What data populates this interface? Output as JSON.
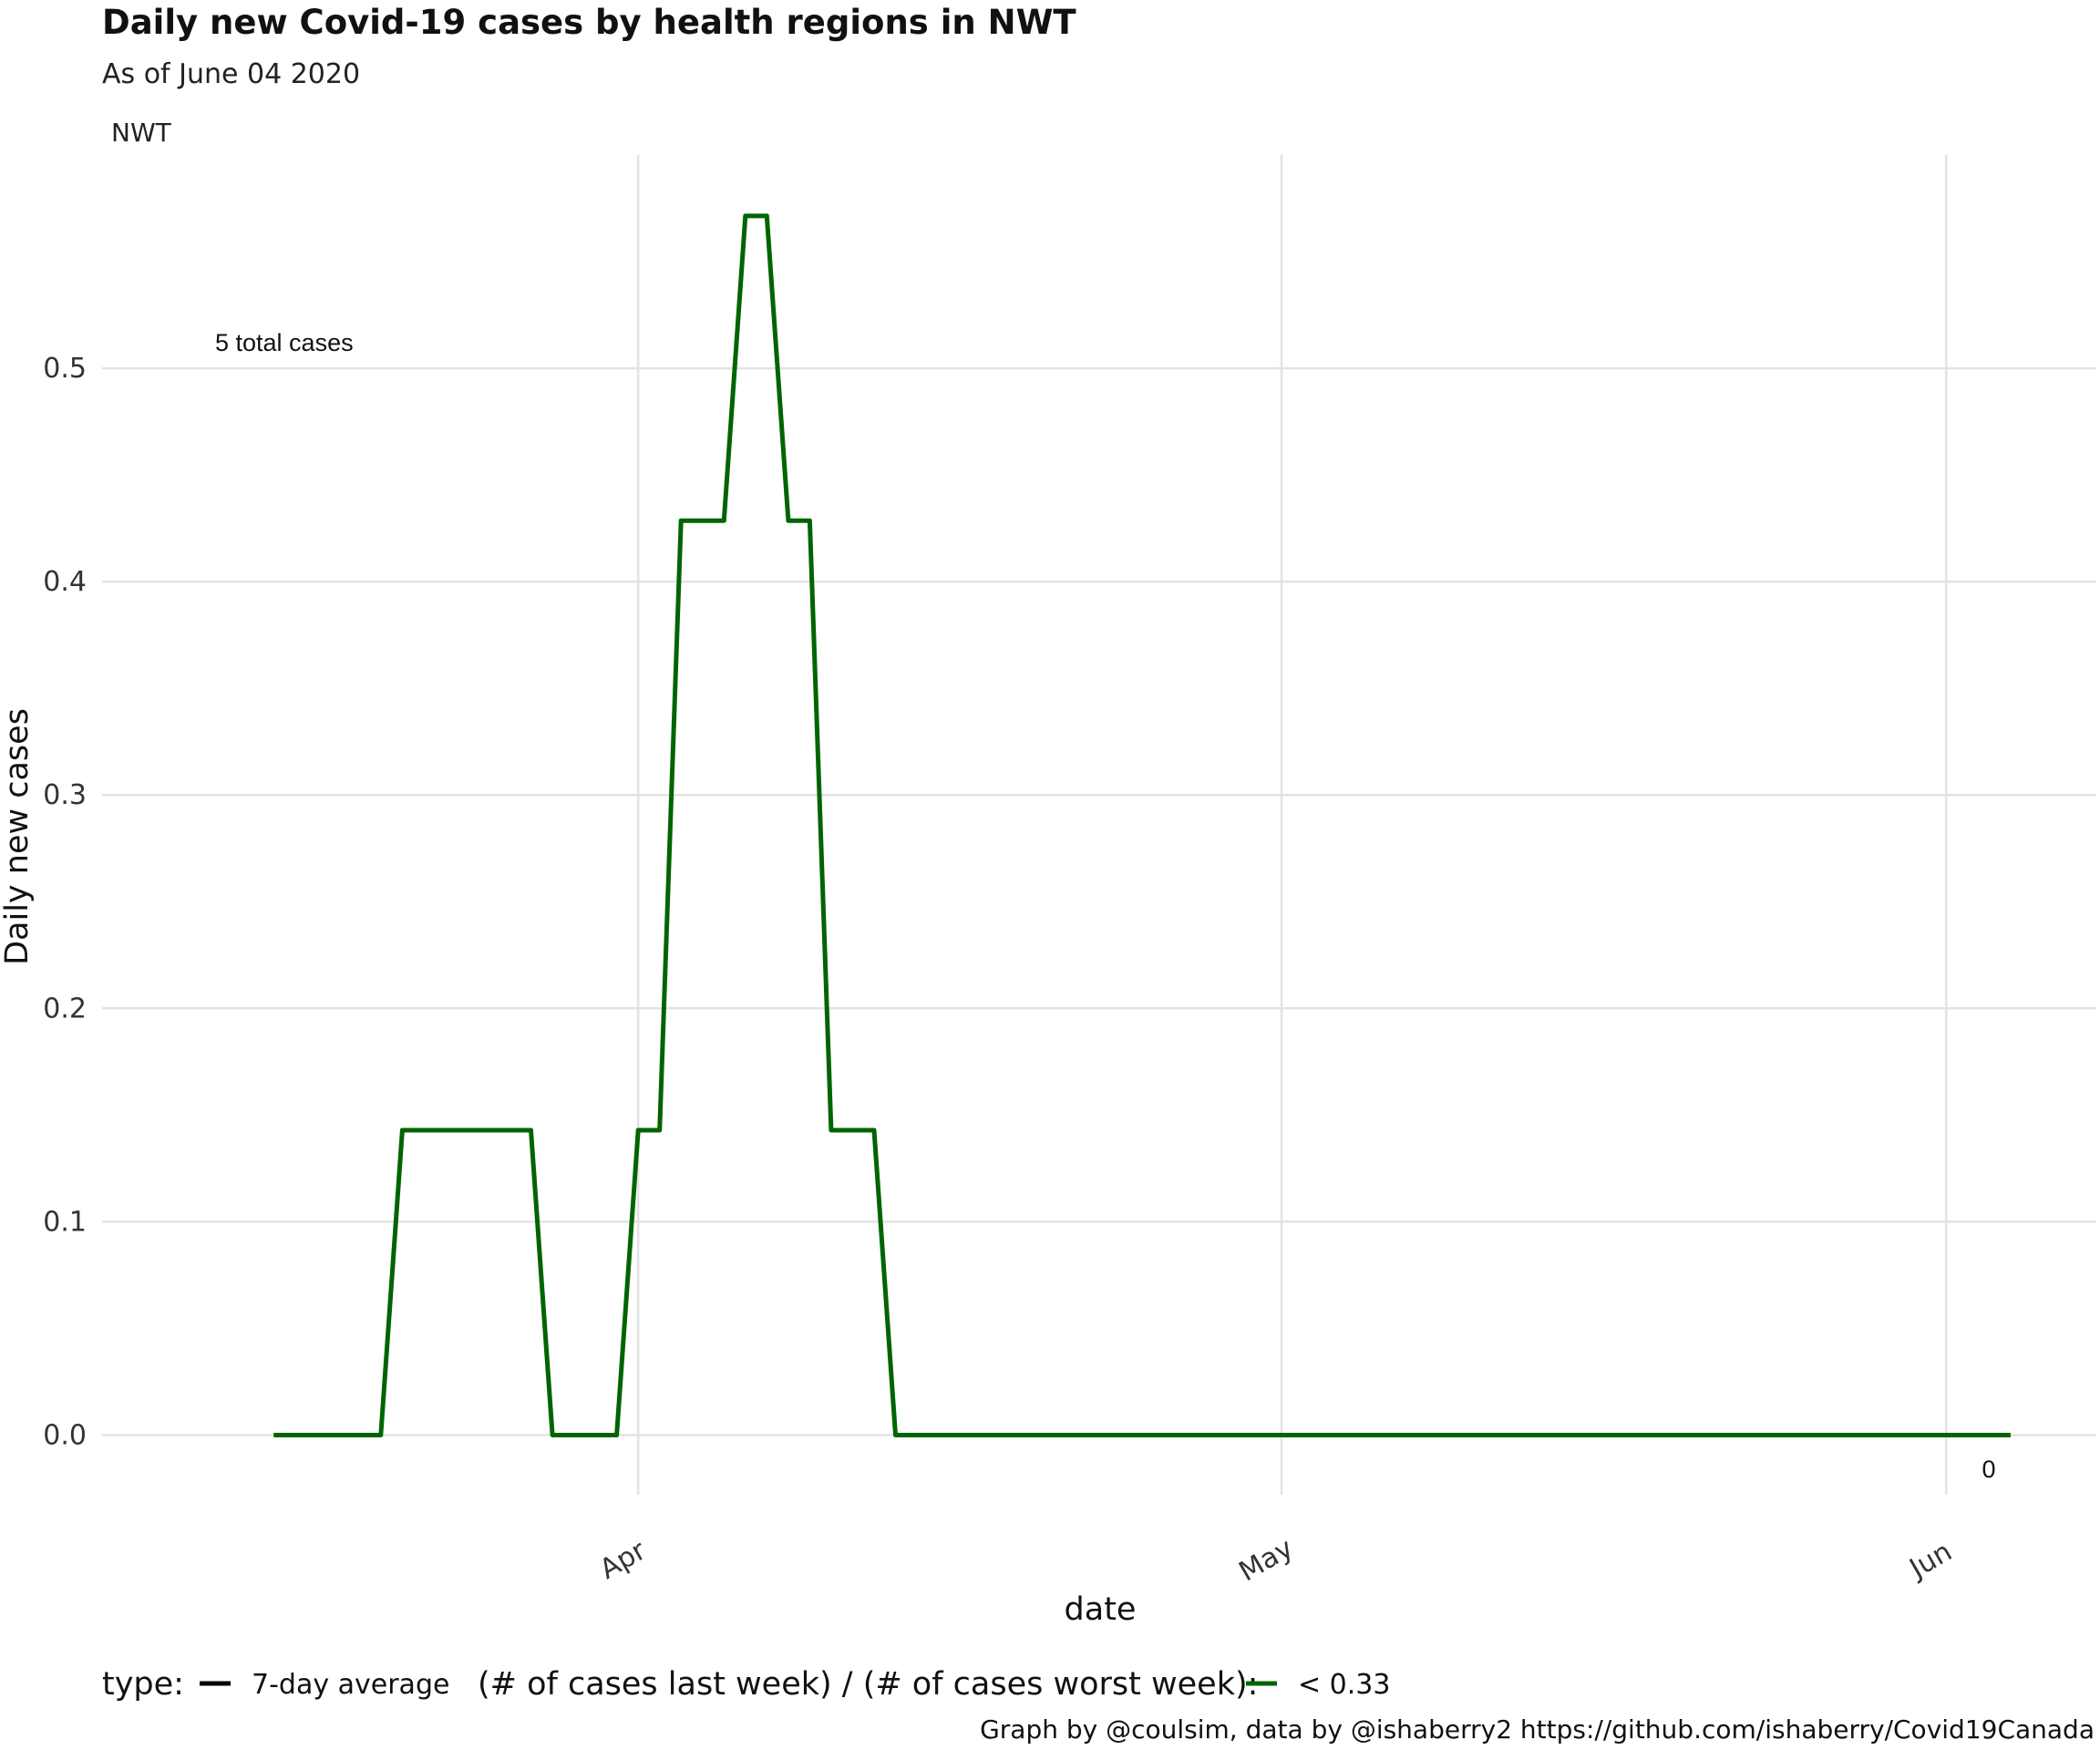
{
  "chart_data": {
    "type": "line",
    "title": "Daily new Covid-19 cases by health regions in NWT",
    "subtitle": "As of June 04 2020",
    "facet_label": "NWT",
    "xlabel": "date",
    "ylabel": "Daily new cases",
    "x_ticks": [
      {
        "label": "Apr",
        "date": "2020-04-01"
      },
      {
        "label": "May",
        "date": "2020-05-01"
      },
      {
        "label": "Jun",
        "date": "2020-06-01"
      }
    ],
    "xlim": [
      "2020-03-07",
      "2020-06-08"
    ],
    "y_ticks": [
      "0.0",
      "0.1",
      "0.2",
      "0.3",
      "0.4",
      "0.5"
    ],
    "y_tick_values": [
      0,
      0.1,
      0.2,
      0.3,
      0.4,
      0.5
    ],
    "ylim": [
      -0.028,
      0.6
    ],
    "grid": true,
    "series": [
      {
        "name": "< 0.33",
        "color": "#006400",
        "x": [
          "2020-03-15",
          "2020-03-20",
          "2020-03-21",
          "2020-03-27",
          "2020-03-28",
          "2020-03-31",
          "2020-04-01",
          "2020-04-02",
          "2020-04-03",
          "2020-04-05",
          "2020-04-06",
          "2020-04-07",
          "2020-04-08",
          "2020-04-09",
          "2020-04-10",
          "2020-04-12",
          "2020-04-13",
          "2020-06-04"
        ],
        "values": [
          0,
          0,
          0.1429,
          0.1429,
          0,
          0,
          0.1429,
          0.1429,
          0.4286,
          0.4286,
          0.5714,
          0.5714,
          0.4286,
          0.4286,
          0.1429,
          0.1429,
          0,
          0
        ]
      }
    ],
    "annotations": {
      "total_cases": "5 total cases",
      "last_value": "0"
    },
    "legend": {
      "type_label": "type:",
      "type_item": "7-day average",
      "ratio_label": "(# of cases last week) / (# of cases worst week):",
      "ratio_item": "< 0.33",
      "type_color": "#000000",
      "ratio_color": "#006400",
      "placement": "bottom"
    },
    "caption": "Graph by @coulsim, data by @ishaberry2 https://github.com/ishaberry/Covid19Canada"
  }
}
